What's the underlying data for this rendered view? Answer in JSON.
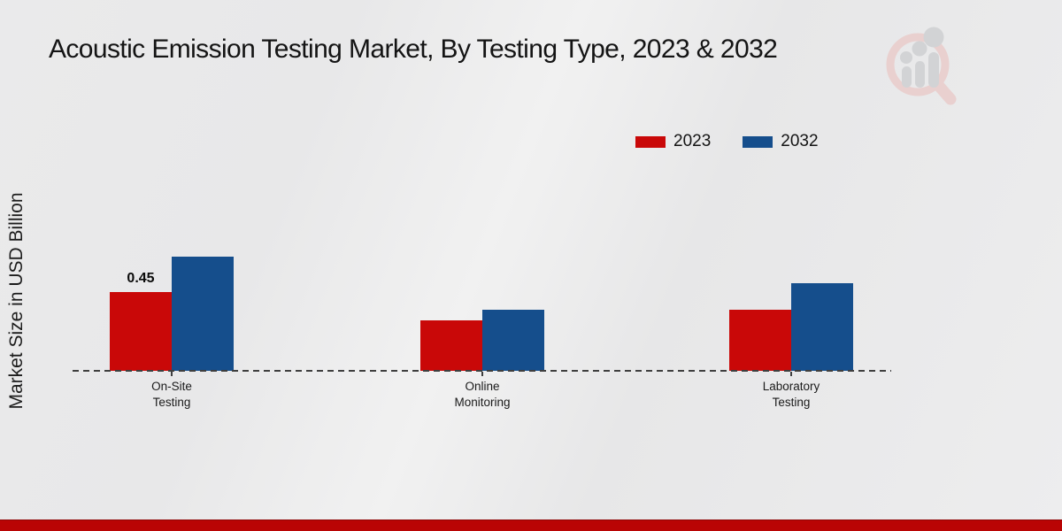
{
  "title": "Acoustic Emission Testing Market, By Testing Type, 2023 & 2032",
  "y_axis_label": "Market Size in USD Billion",
  "legend": [
    {
      "label": "2023",
      "color": "#c90808"
    },
    {
      "label": "2032",
      "color": "#154e8c"
    }
  ],
  "footer": {
    "bar_color": "#b90404"
  },
  "logo": {
    "name": "magnifier-bar-chart-watermark",
    "ring_color": "#e9d0cf",
    "bars_color": "#d2d3d5"
  },
  "chart_data": {
    "type": "bar",
    "title": "Acoustic Emission Testing Market, By Testing Type, 2023 & 2032",
    "xlabel": "",
    "ylabel": "Market Size in USD Billion",
    "categories": [
      "On-Site\nTesting",
      "Online\nMonitoring",
      "Laboratory\nTesting"
    ],
    "series": [
      {
        "name": "2023",
        "color": "#c90808",
        "values": [
          0.45,
          0.29,
          0.35
        ],
        "labels": [
          "0.45",
          "",
          ""
        ]
      },
      {
        "name": "2032",
        "color": "#154e8c",
        "values": [
          0.65,
          0.35,
          0.5
        ],
        "labels": [
          "",
          "",
          ""
        ]
      }
    ],
    "ylim": [
      0,
      0.75
    ],
    "grid": false,
    "axis_line_style": "dashed",
    "legend_position": "top-right"
  }
}
